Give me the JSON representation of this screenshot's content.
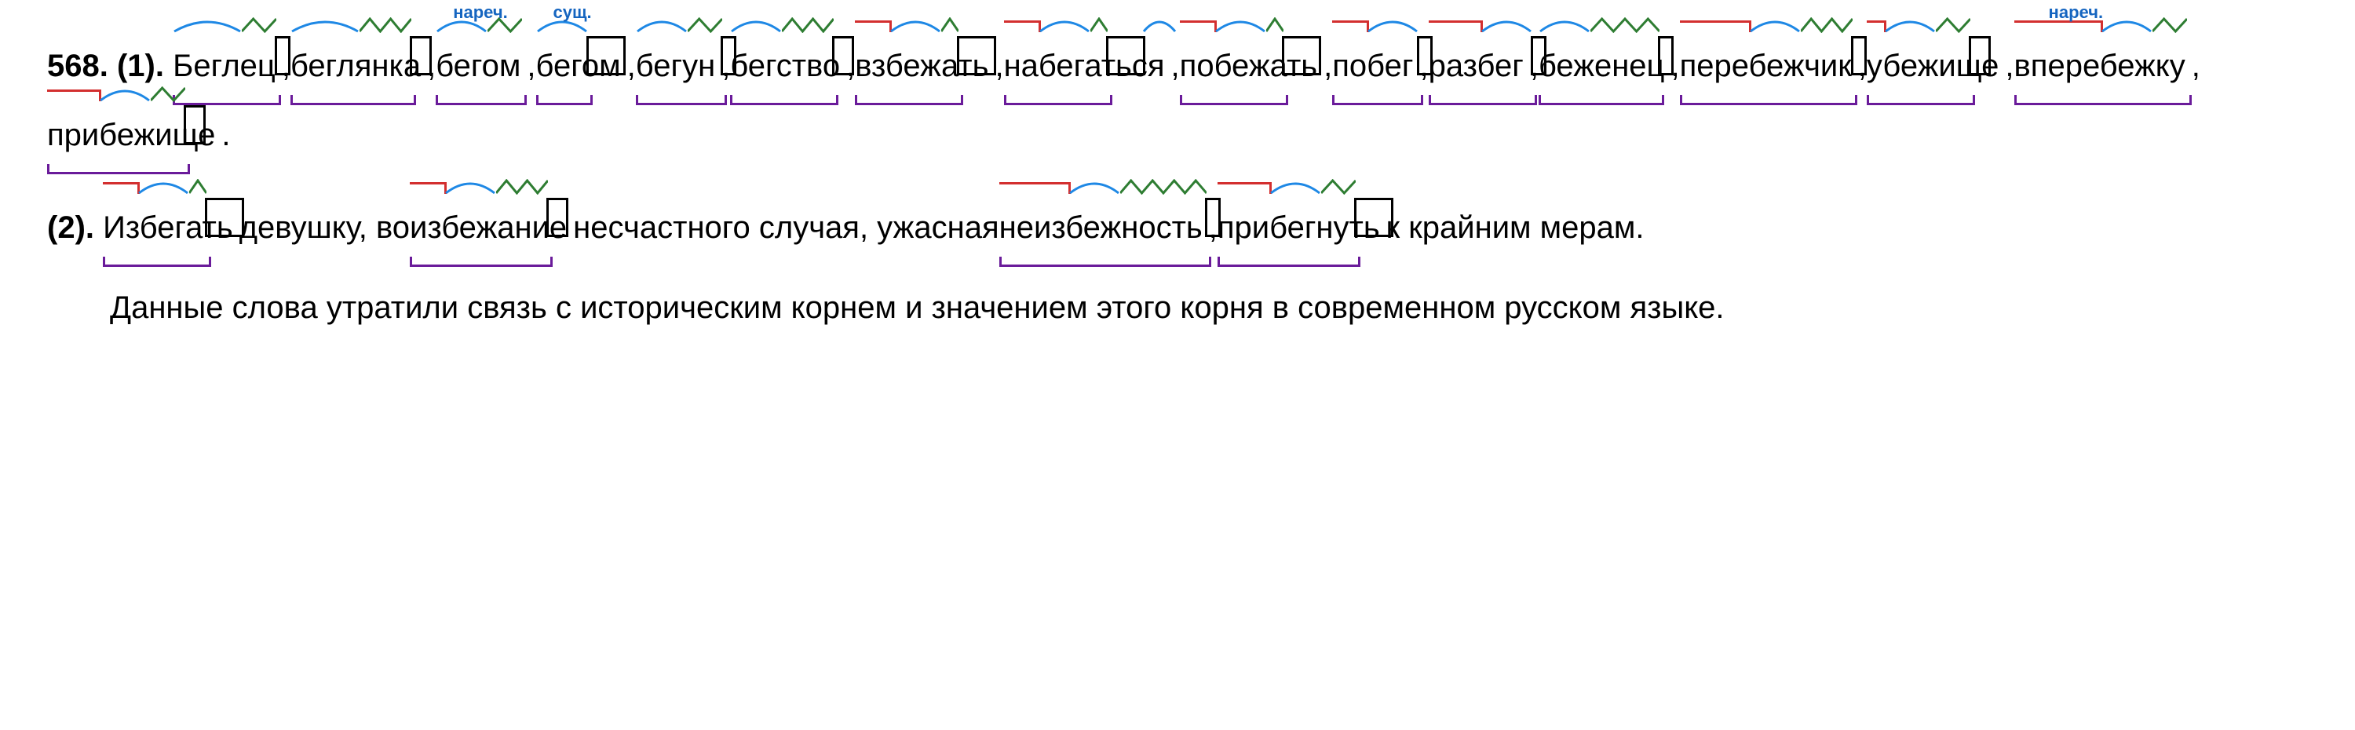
{
  "exercise_number": "568.",
  "part1_label": "(1).",
  "part2_label": "(2).",
  "pos_labels": {
    "adverb": "нареч.",
    "noun": "сущ."
  },
  "colors": {
    "root_arc": "#1e88e5",
    "suffix_zig": "#2e7d32",
    "prefix": "#d32f2f",
    "base": "#6a1b9a",
    "ending_box": "#000000",
    "pos_label": "#1565c0",
    "text": "#000000",
    "background": "#ffffff"
  },
  "stroke_width": 3,
  "font_size_main": 40,
  "font_size_pos": 22,
  "part1_words": [
    {
      "text": "Беглец",
      "prefix_end": 0,
      "root": [
        0,
        4
      ],
      "suffix": [
        4,
        6
      ],
      "ending": [
        6,
        6
      ],
      "base": [
        0,
        6
      ]
    },
    {
      "text": "беглянка",
      "prefix_end": 0,
      "root": [
        0,
        4
      ],
      "suffix": [
        4,
        7
      ],
      "ending": [
        7,
        8
      ],
      "base": [
        0,
        7
      ]
    },
    {
      "text": "бегом",
      "pos": "adverb",
      "prefix_end": 0,
      "root": [
        0,
        3
      ],
      "suffix": [
        3,
        5
      ],
      "base": [
        0,
        5
      ]
    },
    {
      "text": "бегом",
      "pos": "noun",
      "prefix_end": 0,
      "root": [
        0,
        3
      ],
      "ending": [
        3,
        5
      ],
      "base": [
        0,
        3
      ]
    },
    {
      "text": "бегун",
      "prefix_end": 0,
      "root": [
        0,
        3
      ],
      "suffix": [
        3,
        5
      ],
      "ending": [
        5,
        5
      ],
      "base": [
        0,
        5
      ]
    },
    {
      "text": "бегство",
      "prefix_end": 0,
      "root": [
        0,
        3
      ],
      "suffix": [
        3,
        6
      ],
      "ending": [
        6,
        7
      ],
      "base": [
        0,
        6
      ]
    },
    {
      "text": "взбежать",
      "prefix_end": 2,
      "root": [
        2,
        5
      ],
      "suffix": [
        5,
        6
      ],
      "ending": [
        6,
        8
      ],
      "base": [
        0,
        6
      ]
    },
    {
      "text": "набегаться",
      "prefix_end": 2,
      "root": [
        2,
        5
      ],
      "suffix": [
        5,
        6
      ],
      "ending": [
        6,
        8
      ],
      "postfix": [
        8,
        10
      ],
      "base": [
        0,
        6
      ]
    },
    {
      "text": "побежать",
      "prefix_end": 2,
      "root": [
        2,
        5
      ],
      "suffix": [
        5,
        6
      ],
      "ending": [
        6,
        8
      ],
      "base": [
        0,
        6
      ]
    },
    {
      "text": "побег",
      "prefix_end": 2,
      "root": [
        2,
        5
      ],
      "ending": [
        5,
        5
      ],
      "base": [
        0,
        5
      ]
    },
    {
      "text": "разбег",
      "prefix_end": 3,
      "root": [
        3,
        6
      ],
      "ending": [
        6,
        6
      ],
      "base": [
        0,
        6
      ]
    },
    {
      "text": "беженец",
      "prefix_end": 0,
      "root": [
        0,
        3
      ],
      "suffix": [
        3,
        7
      ],
      "ending": [
        7,
        7
      ],
      "base": [
        0,
        7
      ]
    },
    {
      "text": "перебежчик",
      "prefix_end": 4,
      "root": [
        4,
        7
      ],
      "suffix": [
        7,
        10
      ],
      "ending": [
        10,
        10
      ],
      "base": [
        0,
        10
      ]
    },
    {
      "text": "убежище",
      "prefix_end": 1,
      "root": [
        1,
        4
      ],
      "suffix": [
        4,
        6
      ],
      "ending": [
        6,
        7
      ],
      "base": [
        0,
        6
      ]
    },
    {
      "text": "вперебежку",
      "pos": "adverb",
      "prefix_end": 5,
      "root": [
        5,
        8
      ],
      "suffix": [
        8,
        10
      ],
      "base": [
        0,
        10
      ]
    },
    {
      "text": "прибежище",
      "prefix_end": 3,
      "root": [
        3,
        6
      ],
      "suffix": [
        6,
        8
      ],
      "ending": [
        8,
        9
      ],
      "base": [
        0,
        8
      ]
    }
  ],
  "part2_items": [
    {
      "word": "Избегать",
      "prefix_end": 2,
      "root": [
        2,
        5
      ],
      "suffix": [
        5,
        6
      ],
      "ending": [
        6,
        8
      ],
      "base": [
        0,
        6
      ],
      "after": " девушку, во "
    },
    {
      "word": "избежание",
      "prefix_end": 2,
      "root": [
        2,
        5
      ],
      "suffix": [
        5,
        8
      ],
      "ending": [
        8,
        9
      ],
      "base": [
        0,
        8
      ],
      "after": " несчастного случая, ужасная "
    },
    {
      "word": "неизбежность",
      "prefix_end": 4,
      "root": [
        4,
        7
      ],
      "suffix": [
        7,
        12
      ],
      "ending": [
        12,
        12
      ],
      "base": [
        0,
        12
      ],
      "after": " ,"
    },
    {
      "word": "прибегнуть",
      "prefix_end": 3,
      "root": [
        3,
        6
      ],
      "suffix": [
        6,
        8
      ],
      "ending": [
        8,
        10
      ],
      "base": [
        0,
        8
      ],
      "after": " к крайним мерам."
    }
  ],
  "footer_text": "Данные слова утратили связь с историческим корнем и значением этого корня в современном русском языке."
}
